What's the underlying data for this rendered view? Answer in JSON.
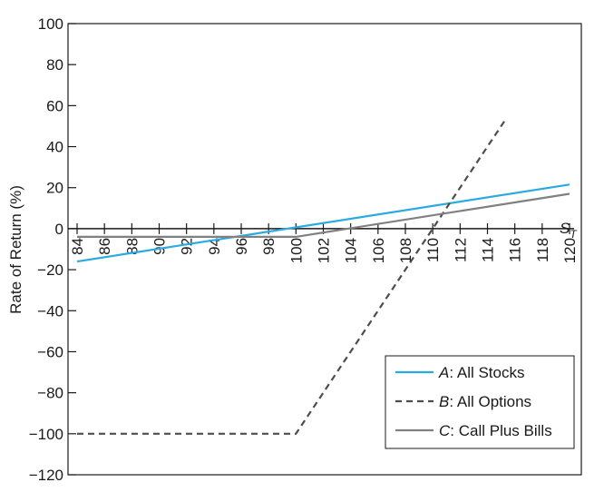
{
  "chart_data": {
    "type": "line",
    "title": "",
    "ylabel": "Rate of Return (%)",
    "xlabel": "S",
    "xlabel_sub": "T",
    "xlim": [
      84,
      120
    ],
    "ylim": [
      -120,
      100
    ],
    "x_ticks": [
      84,
      86,
      88,
      90,
      92,
      94,
      96,
      98,
      100,
      102,
      104,
      106,
      108,
      110,
      112,
      114,
      116,
      118,
      120
    ],
    "y_ticks": [
      100,
      80,
      60,
      40,
      20,
      0,
      -20,
      -40,
      -60,
      -80,
      -100,
      -120
    ],
    "y_tick_labels": [
      "100",
      "80",
      "60",
      "40",
      "20",
      "0",
      "−20",
      "−40",
      "−60",
      "−80",
      "−100",
      "−120"
    ],
    "grid": false,
    "legend_position": "bottom-right",
    "series": [
      {
        "name": "A",
        "desc": ": All Stocks",
        "color": "#29abe2",
        "dash": "solid",
        "points": [
          [
            84,
            -16
          ],
          [
            120,
            21.5
          ]
        ]
      },
      {
        "name": "B",
        "desc": ": All Options",
        "color": "#4d4d4d",
        "dash": "dashed",
        "points": [
          [
            84,
            -100
          ],
          [
            100,
            -100
          ],
          [
            115.4,
            54
          ]
        ]
      },
      {
        "name": "C",
        "desc": ": Call Plus Bills",
        "color": "#808080",
        "dash": "solid",
        "points": [
          [
            84,
            -4
          ],
          [
            100,
            -4
          ],
          [
            120,
            17
          ]
        ]
      }
    ]
  }
}
